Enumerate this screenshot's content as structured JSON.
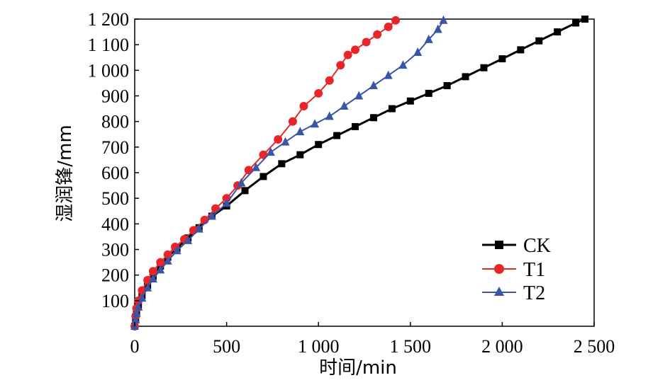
{
  "chart_data": {
    "type": "line",
    "xlabel": "时间/min",
    "ylabel": "湿润锋/mm",
    "xlim": [
      0,
      2500
    ],
    "ylim": [
      0,
      1200
    ],
    "x_ticks": [
      0,
      500,
      1000,
      1500,
      2000,
      2500
    ],
    "x_tick_labels": [
      "0",
      "500",
      "1 000",
      "1 500",
      "2 000",
      "2 500"
    ],
    "y_ticks": [
      100,
      200,
      300,
      400,
      500,
      600,
      700,
      800,
      900,
      1000,
      1100,
      1200
    ],
    "y_tick_labels": [
      "100",
      "200",
      "300",
      "400",
      "500",
      "600",
      "700",
      "800",
      "900",
      "1 000",
      "1 100",
      "1 200"
    ],
    "grid": false,
    "legend_position": "bottom-right",
    "series": [
      {
        "name": "CK",
        "color": "#000000",
        "marker": "square",
        "points": [
          [
            0,
            0
          ],
          [
            5,
            30
          ],
          [
            10,
            55
          ],
          [
            20,
            80
          ],
          [
            40,
            120
          ],
          [
            70,
            160
          ],
          [
            100,
            195
          ],
          [
            140,
            235
          ],
          [
            180,
            270
          ],
          [
            230,
            305
          ],
          [
            290,
            345
          ],
          [
            350,
            385
          ],
          [
            420,
            430
          ],
          [
            500,
            470
          ],
          [
            600,
            530
          ],
          [
            700,
            585
          ],
          [
            800,
            635
          ],
          [
            900,
            670
          ],
          [
            1000,
            710
          ],
          [
            1100,
            745
          ],
          [
            1200,
            780
          ],
          [
            1300,
            815
          ],
          [
            1400,
            850
          ],
          [
            1500,
            880
          ],
          [
            1600,
            910
          ],
          [
            1700,
            940
          ],
          [
            1800,
            975
          ],
          [
            1900,
            1010
          ],
          [
            2000,
            1045
          ],
          [
            2100,
            1080
          ],
          [
            2200,
            1115
          ],
          [
            2300,
            1150
          ],
          [
            2400,
            1185
          ],
          [
            2450,
            1200
          ]
        ]
      },
      {
        "name": "T1",
        "color": "#e8262a",
        "marker": "circle",
        "points": [
          [
            0,
            0
          ],
          [
            5,
            40
          ],
          [
            10,
            70
          ],
          [
            20,
            100
          ],
          [
            40,
            140
          ],
          [
            70,
            180
          ],
          [
            100,
            215
          ],
          [
            140,
            250
          ],
          [
            180,
            280
          ],
          [
            220,
            310
          ],
          [
            270,
            340
          ],
          [
            320,
            375
          ],
          [
            380,
            415
          ],
          [
            440,
            460
          ],
          [
            500,
            500
          ],
          [
            560,
            550
          ],
          [
            620,
            610
          ],
          [
            700,
            670
          ],
          [
            780,
            730
          ],
          [
            860,
            800
          ],
          [
            920,
            860
          ],
          [
            1000,
            910
          ],
          [
            1060,
            960
          ],
          [
            1120,
            1020
          ],
          [
            1160,
            1060
          ],
          [
            1200,
            1080
          ],
          [
            1260,
            1110
          ],
          [
            1320,
            1140
          ],
          [
            1380,
            1170
          ],
          [
            1420,
            1195
          ]
        ]
      },
      {
        "name": "T2",
        "color": "#3a55a5",
        "marker": "triangle",
        "points": [
          [
            0,
            0
          ],
          [
            5,
            25
          ],
          [
            10,
            50
          ],
          [
            20,
            75
          ],
          [
            40,
            110
          ],
          [
            70,
            150
          ],
          [
            100,
            185
          ],
          [
            140,
            220
          ],
          [
            180,
            255
          ],
          [
            230,
            295
          ],
          [
            290,
            335
          ],
          [
            350,
            380
          ],
          [
            420,
            430
          ],
          [
            500,
            480
          ],
          [
            580,
            560
          ],
          [
            660,
            620
          ],
          [
            740,
            680
          ],
          [
            820,
            720
          ],
          [
            900,
            760
          ],
          [
            980,
            790
          ],
          [
            1060,
            820
          ],
          [
            1140,
            860
          ],
          [
            1220,
            900
          ],
          [
            1300,
            940
          ],
          [
            1380,
            980
          ],
          [
            1460,
            1020
          ],
          [
            1540,
            1070
          ],
          [
            1600,
            1120
          ],
          [
            1650,
            1160
          ],
          [
            1680,
            1195
          ]
        ]
      }
    ]
  }
}
